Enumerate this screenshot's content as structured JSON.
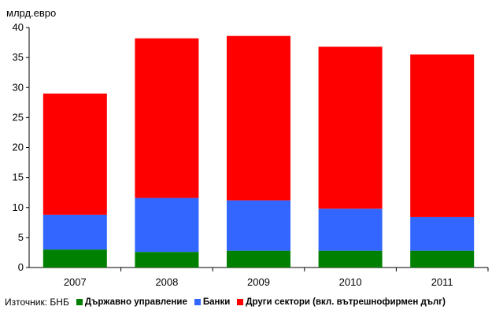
{
  "chart_data": {
    "type": "bar",
    "stacked": true,
    "title": "",
    "ylabel": "млрд.евро",
    "xlabel": "",
    "ylim": [
      0,
      40
    ],
    "yticks": [
      0,
      5,
      10,
      15,
      20,
      25,
      30,
      35,
      40
    ],
    "grid": false,
    "categories": [
      "2007",
      "2008",
      "2009",
      "2010",
      "2011"
    ],
    "series": [
      {
        "name": "Държавно управление",
        "color": "#008000",
        "values": [
          3.0,
          2.6,
          2.8,
          2.8,
          2.8
        ]
      },
      {
        "name": "Банки",
        "color": "#3366FF",
        "values": [
          5.8,
          9.0,
          8.4,
          7.0,
          5.6
        ]
      },
      {
        "name": "Други сектори (вкл. вътрешнофирмен дълг)",
        "color": "#FF0000",
        "values": [
          20.2,
          26.6,
          27.4,
          27.0,
          27.1
        ]
      }
    ],
    "source": "Източник: БНБ",
    "legend_position": "bottom"
  }
}
